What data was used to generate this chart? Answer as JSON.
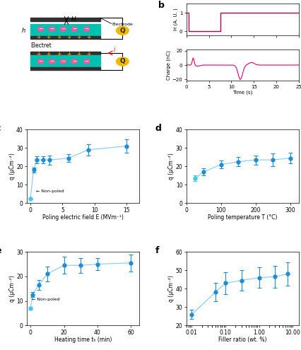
{
  "panel_b_top": {
    "x": [
      0,
      0.5,
      0.5,
      7.5,
      7.5,
      25
    ],
    "y": [
      1,
      1,
      0,
      0,
      1,
      1
    ],
    "color": "#b5004a",
    "xlim": [
      0,
      25
    ],
    "ylim": [
      -0.2,
      1.5
    ],
    "yticks": [
      0,
      1
    ],
    "ylabel": "H (A. U. )",
    "xlabel": ""
  },
  "panel_b_bottom": {
    "color": "#e8006a",
    "xlim": [
      0,
      25
    ],
    "ylim": [
      -22,
      22
    ],
    "yticks": [
      -20,
      0,
      20
    ],
    "ylabel": "Charge (nC)",
    "xlabel": "Time (s)"
  },
  "panel_c": {
    "x": [
      0,
      0.5,
      1,
      2,
      3,
      6,
      9,
      15
    ],
    "y": [
      2.5,
      18.0,
      23.5,
      23.5,
      23.5,
      24.5,
      29.0,
      31.0
    ],
    "yerr": [
      0.3,
      1.5,
      2.0,
      2.0,
      2.5,
      2.0,
      3.0,
      3.5
    ],
    "colors": [
      "#40c8f0",
      "#1e8cd4",
      "#1e8cd4",
      "#1e8cd4",
      "#1e8cd4",
      "#1e8cd4",
      "#1e8cd4",
      "#1e8cd4"
    ],
    "line_color": "#90d0f0",
    "xlim": [
      -0.5,
      17
    ],
    "ylim": [
      0,
      40
    ],
    "yticks": [
      0,
      10,
      20,
      30,
      40
    ],
    "xticks": [
      0,
      5,
      10,
      15
    ],
    "ylabel": "q (μCm⁻²)",
    "xlabel": "Poling electric field E (MVm⁻¹)",
    "label": "c"
  },
  "panel_d": {
    "x": [
      25,
      50,
      100,
      150,
      200,
      250,
      300
    ],
    "y": [
      13.5,
      17.0,
      21.0,
      22.5,
      23.5,
      23.5,
      24.5
    ],
    "yerr": [
      1.5,
      2.0,
      2.0,
      2.5,
      2.5,
      3.5,
      3.0
    ],
    "colors": [
      "#40c8f0",
      "#1e8cd4",
      "#1e8cd4",
      "#1e8cd4",
      "#1e8cd4",
      "#1e8cd4",
      "#1e8cd4"
    ],
    "line_color": "#90d0f0",
    "xlim": [
      0,
      325
    ],
    "ylim": [
      0,
      40
    ],
    "yticks": [
      0,
      10,
      20,
      30,
      40
    ],
    "xticks": [
      0,
      100,
      200,
      300
    ],
    "ylabel": "q (μCm⁻²)",
    "xlabel": "Poling temperature T (°C)",
    "label": "d"
  },
  "panel_e": {
    "x": [
      0,
      1,
      5,
      10,
      20,
      30,
      40,
      60
    ],
    "y": [
      7.0,
      12.5,
      16.5,
      21.0,
      24.5,
      24.5,
      25.0,
      25.5
    ],
    "yerr": [
      0.5,
      1.0,
      2.0,
      3.0,
      3.5,
      3.0,
      2.5,
      3.5
    ],
    "colors": [
      "#40c8f0",
      "#1e8cd4",
      "#1e8cd4",
      "#1e8cd4",
      "#1e8cd4",
      "#1e8cd4",
      "#1e8cd4",
      "#1e8cd4"
    ],
    "line_color": "#90d0f0",
    "xlim": [
      -2,
      65
    ],
    "ylim": [
      0,
      30
    ],
    "yticks": [
      0,
      10,
      20,
      30
    ],
    "xticks": [
      0,
      20,
      40,
      60
    ],
    "ylabel": "q (μCm⁻²)",
    "xlabel": "Heating time tₕ (min)",
    "label": "e"
  },
  "panel_f": {
    "x": [
      0.01,
      0.05,
      0.1,
      0.3,
      1.0,
      3.0,
      7.0
    ],
    "y": [
      26.0,
      38.0,
      43.0,
      44.5,
      46.0,
      46.5,
      48.0
    ],
    "yerr": [
      2.5,
      5.0,
      6.0,
      5.5,
      5.5,
      6.0,
      6.5
    ],
    "colors": [
      "#1e8cd4",
      "#1e8cd4",
      "#1e8cd4",
      "#1e8cd4",
      "#1e8cd4",
      "#1e8cd4",
      "#1e8cd4"
    ],
    "line_color": "#90d0f0",
    "xlim": [
      0.007,
      15
    ],
    "ylim": [
      20,
      60
    ],
    "yticks": [
      20,
      30,
      40,
      50,
      60
    ],
    "xticks": [
      0.01,
      0.1,
      1,
      10
    ],
    "xticklabels": [
      "0.01",
      "0.1",
      "1",
      "10"
    ],
    "ylabel": "q (μCm⁻²)",
    "xlabel": "Filler ratio (wt. %)",
    "label": "f"
  }
}
